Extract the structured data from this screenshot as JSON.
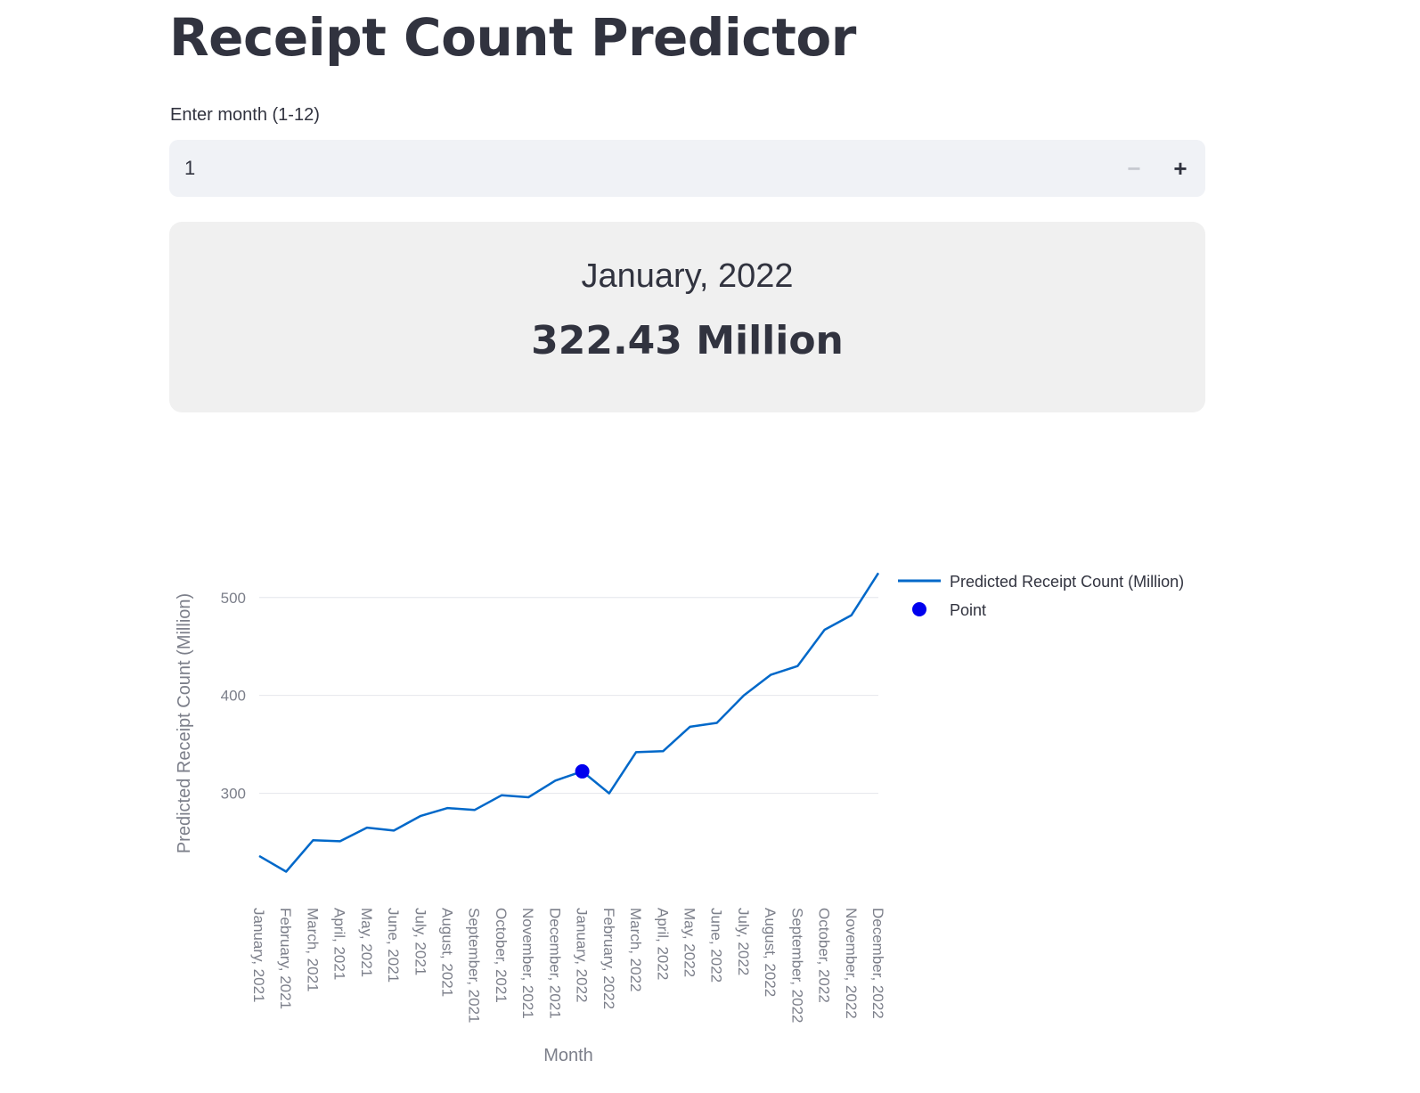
{
  "page": {
    "title": "Receipt Count Predictor"
  },
  "month_input": {
    "label": "Enter month (1-12)",
    "value": "1",
    "decrement_symbol": "−",
    "increment_symbol": "+"
  },
  "result": {
    "month_label": "January, 2022",
    "value_label": "322.43 Million"
  },
  "colors": {
    "line": "#0068c9",
    "point": "#0000ee",
    "grid": "#e4e6eb"
  },
  "chart_data": {
    "type": "line",
    "xlabel": "Month",
    "ylabel": "Predicted Receipt Count (Million)",
    "ylim": [
      205,
      528
    ],
    "yticks": [
      300,
      400,
      500
    ],
    "grid": "horizontal",
    "legend_position": "top-right",
    "categories": [
      "January, 2021",
      "February, 2021",
      "March, 2021",
      "April, 2021",
      "May, 2021",
      "June, 2021",
      "July, 2021",
      "August, 2021",
      "September, 2021",
      "October, 2021",
      "November, 2021",
      "December, 2021",
      "January, 2022",
      "February, 2022",
      "March, 2022",
      "April, 2022",
      "May, 2022",
      "June, 2022",
      "July, 2022",
      "August, 2022",
      "September, 2022",
      "October, 2022",
      "November, 2022",
      "December, 2022"
    ],
    "series": [
      {
        "name": "Predicted Receipt Count (Million)",
        "mode": "line",
        "values": [
          236,
          220,
          252,
          251,
          265,
          262,
          277,
          285,
          283,
          298,
          296,
          313,
          322.43,
          300,
          342,
          343,
          368,
          372,
          400,
          421,
          430,
          467,
          482,
          525
        ]
      },
      {
        "name": "Point",
        "mode": "marker",
        "x": "January, 2022",
        "y": 322.43
      }
    ]
  }
}
